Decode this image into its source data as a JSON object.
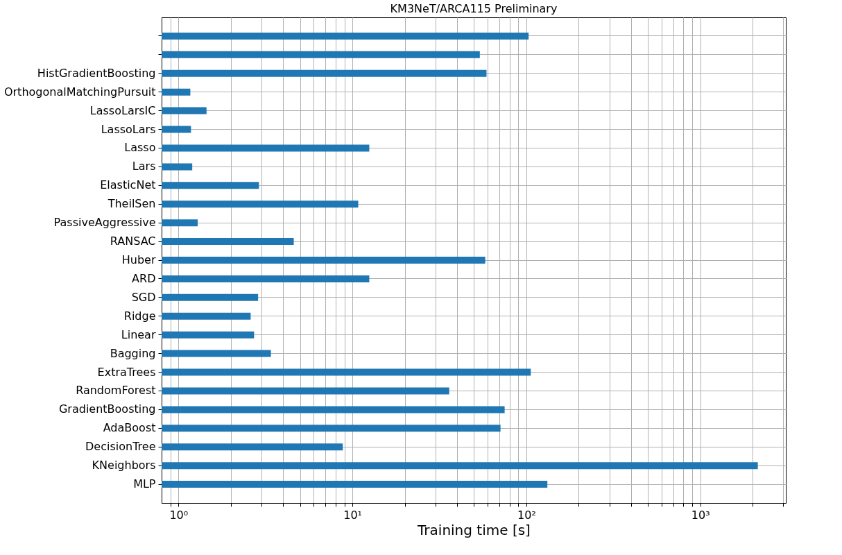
{
  "chart_data": {
    "type": "bar",
    "orientation": "horizontal",
    "title": "KM3NeT/ARCA115 Preliminary",
    "xlabel": "Training time [s]",
    "log": "x",
    "grid": true,
    "color": "#1f77b4",
    "categories": [
      null,
      null,
      "HistGradientBoosting",
      "OrthogonalMatchingPursuit",
      "LassoLarsIC",
      "LassoLars",
      "Lasso",
      "Lars",
      "ElasticNet",
      "TheilSen",
      "PassiveAggressive",
      "RANSAC",
      "Huber",
      "ARD",
      "SGD",
      "Ridge",
      "Linear",
      "Bagging",
      "ExtraTrees",
      "RandomForest",
      "GradientBoosting",
      "AdaBoost",
      "DecisionTree",
      "KNeighbors",
      "MLP"
    ],
    "values": [
      103,
      54,
      59,
      1.17,
      1.45,
      1.18,
      12.5,
      1.2,
      2.9,
      10.8,
      1.29,
      4.6,
      58,
      12.5,
      2.87,
      2.6,
      2.72,
      3.4,
      106,
      36,
      75,
      71,
      8.8,
      2140,
      132
    ],
    "xlim": [
      0.8,
      3100
    ],
    "xticks": [
      {
        "value": 0.9,
        "label": null
      },
      {
        "value": 1,
        "label": "10⁰"
      },
      {
        "value": 2,
        "label": null
      },
      {
        "value": 3,
        "label": null
      },
      {
        "value": 4,
        "label": null
      },
      {
        "value": 5,
        "label": null
      },
      {
        "value": 6,
        "label": null
      },
      {
        "value": 7,
        "label": null
      },
      {
        "value": 8,
        "label": null
      },
      {
        "value": 9,
        "label": null
      },
      {
        "value": 10,
        "label": "10¹"
      },
      {
        "value": 20,
        "label": null
      },
      {
        "value": 30,
        "label": null
      },
      {
        "value": 40,
        "label": null
      },
      {
        "value": 50,
        "label": null
      },
      {
        "value": 60,
        "label": null
      },
      {
        "value": 70,
        "label": null
      },
      {
        "value": 80,
        "label": null
      },
      {
        "value": 90,
        "label": null
      },
      {
        "value": 100,
        "label": "10²"
      },
      {
        "value": 200,
        "label": null
      },
      {
        "value": 300,
        "label": null
      },
      {
        "value": 400,
        "label": null
      },
      {
        "value": 500,
        "label": null
      },
      {
        "value": 600,
        "label": null
      },
      {
        "value": 700,
        "label": null
      },
      {
        "value": 800,
        "label": null
      },
      {
        "value": 900,
        "label": null
      },
      {
        "value": 1000,
        "label": "10³"
      },
      {
        "value": 2000,
        "label": null
      },
      {
        "value": 3000,
        "label": null
      }
    ]
  }
}
